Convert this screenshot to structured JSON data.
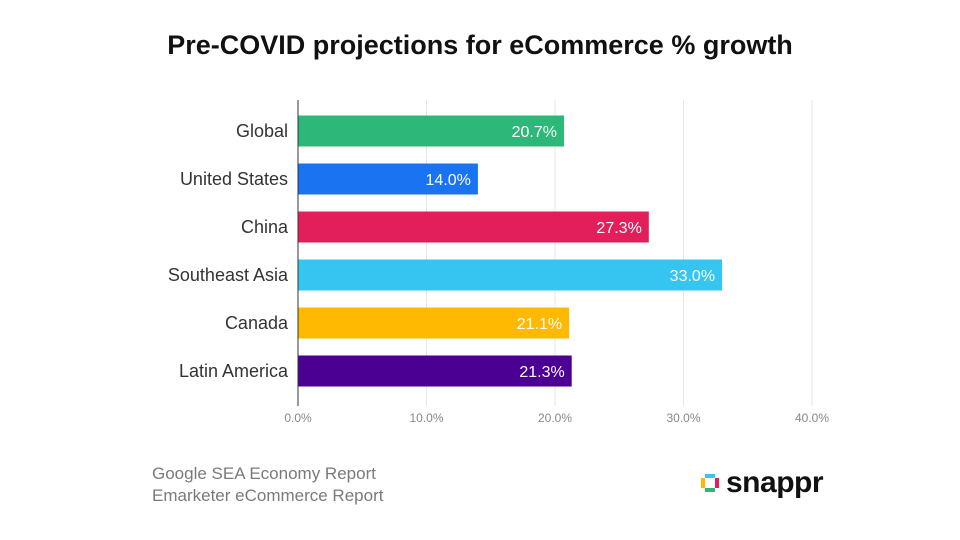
{
  "title": "Pre-COVID projections for eCommerce % growth",
  "chart_data": {
    "type": "bar",
    "orientation": "horizontal",
    "title": "Pre-COVID projections for eCommerce % growth",
    "categories": [
      "Global",
      "United States",
      "China",
      "Southeast Asia",
      "Canada",
      "Latin America"
    ],
    "values": [
      20.7,
      14.0,
      27.3,
      33.0,
      21.1,
      21.3
    ],
    "value_labels": [
      "20.7%",
      "14.0%",
      "27.3%",
      "33.0%",
      "21.1%",
      "21.3%"
    ],
    "colors": [
      "#2db87a",
      "#1a73f0",
      "#e21f5a",
      "#36c5f0",
      "#ffb900",
      "#4b0093"
    ],
    "xlim": [
      0,
      40
    ],
    "xticks": [
      0,
      10,
      20,
      30,
      40
    ],
    "xtick_labels": [
      "0.0%",
      "10.0%",
      "20.0%",
      "30.0%",
      "40.0%"
    ],
    "grid": true,
    "xlabel": "",
    "ylabel": ""
  },
  "sources": {
    "line1": "Google SEA Economy Report",
    "line2": "Emarketer eCommerce Report"
  },
  "logo": {
    "text": "snappr",
    "colors": [
      "#36c5f0",
      "#ffb900",
      "#e21f5a",
      "#2db87a"
    ]
  }
}
